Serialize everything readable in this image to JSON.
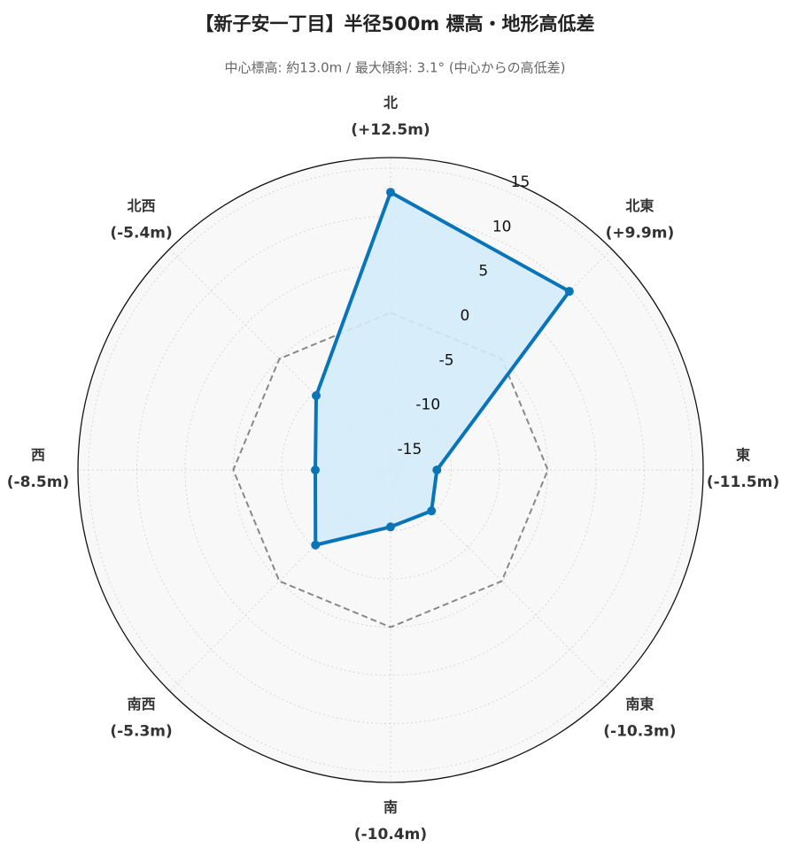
{
  "chart_data": {
    "type": "radar",
    "title": "【新子安一丁目】半径500m 標高・地形高低差",
    "subtitle": "中心標高: 約13.0m / 最大傾斜: 3.1°  (中心からの高低差)",
    "categories": [
      "北",
      "北東",
      "東",
      "南東",
      "南",
      "南西",
      "西",
      "北西"
    ],
    "values": [
      12.5,
      9.9,
      -11.5,
      -10.3,
      -10.4,
      -5.3,
      -8.5,
      -5.4
    ],
    "value_labels": [
      "(+12.5m)",
      "(+9.9m)",
      "(-11.5m)",
      "(-10.3m)",
      "(-10.4m)",
      "(-5.3m)",
      "(-8.5m)",
      "(-5.4m)"
    ],
    "color": "#0a74b8",
    "fill": "#d3ebf8",
    "ylim": [
      -16.3,
      16.1
    ],
    "yticks": [
      -15,
      -10,
      -5,
      0,
      5,
      10,
      15
    ],
    "reference_value": 0,
    "grid": true
  }
}
